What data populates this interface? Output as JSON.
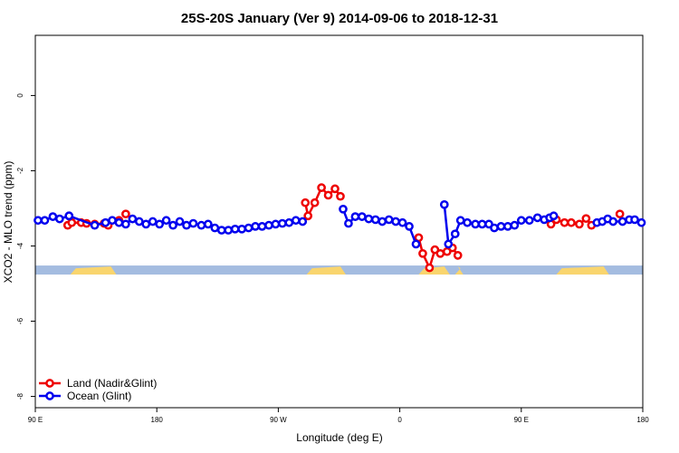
{
  "chart_data": {
    "type": "line",
    "title": "25S-20S January (Ver 9)   2014-09-06 to 2018-12-31",
    "xlabel": "Longitude (deg E)",
    "ylabel": "XCO2 - MLO trend (ppm)",
    "xlim": [
      90,
      540
    ],
    "ylim": [
      -8.3,
      1.6
    ],
    "x_ticks": [
      {
        "value": 90,
        "label": "90 E"
      },
      {
        "value": 180,
        "label": "180"
      },
      {
        "value": 270,
        "label": "90 W"
      },
      {
        "value": 360,
        "label": "0"
      },
      {
        "value": 450,
        "label": "90 E"
      },
      {
        "value": 540,
        "label": "180"
      }
    ],
    "y_ticks": [
      {
        "value": 0,
        "label": "0"
      },
      {
        "value": -2,
        "label": "-2"
      },
      {
        "value": -4,
        "label": "-4"
      },
      {
        "value": -6,
        "label": "-6"
      },
      {
        "value": -8,
        "label": "-8"
      }
    ],
    "grid": false,
    "legend_position": "bottom-left",
    "colors": {
      "land": "#ee0000",
      "ocean": "#0000ee",
      "land_band": "#f9d56e",
      "ocean_band": "#a4bce0"
    },
    "series": [
      {
        "name": "Land (Nadir&Glint)",
        "color": "#ee0000",
        "segments": [
          [
            [
              114,
              -3.45
            ],
            [
              117,
              -3.38
            ],
            [
              124,
              -3.38
            ],
            [
              128,
              -3.4
            ],
            [
              134,
              -3.42
            ],
            [
              141,
              -3.4
            ],
            [
              144,
              -3.45
            ]
          ],
          [
            [
              152,
              -3.32
            ]
          ],
          [
            [
              157,
              -3.15
            ]
          ],
          [
            [
              290,
              -2.85
            ],
            [
              292,
              -3.2
            ],
            [
              297,
              -2.85
            ],
            [
              302,
              -2.45
            ],
            [
              307,
              -2.65
            ],
            [
              312,
              -2.48
            ],
            [
              316,
              -2.68
            ]
          ],
          [
            [
              374,
              -3.78
            ],
            [
              377,
              -4.2
            ],
            [
              382,
              -4.58
            ],
            [
              386,
              -4.1
            ],
            [
              390,
              -4.2
            ],
            [
              395,
              -4.15
            ],
            [
              399,
              -4.05
            ],
            [
              403,
              -4.25
            ]
          ],
          [
            [
              472,
              -3.42
            ],
            [
              476,
              -3.3
            ],
            [
              482,
              -3.38
            ],
            [
              487,
              -3.38
            ],
            [
              493,
              -3.42
            ],
            [
              498,
              -3.27
            ],
            [
              502,
              -3.45
            ]
          ],
          [
            [
              523,
              -3.15
            ]
          ]
        ]
      },
      {
        "name": "Ocean (Glint)",
        "color": "#0000ee",
        "segments": [
          [
            [
              92,
              -3.32
            ],
            [
              97,
              -3.32
            ],
            [
              103,
              -3.22
            ],
            [
              108,
              -3.28
            ],
            [
              115,
              -3.2
            ]
          ],
          [
            [
              115,
              -3.2
            ],
            [
              134,
              -3.45
            ],
            [
              142,
              -3.38
            ],
            [
              147,
              -3.32
            ],
            [
              152,
              -3.38
            ],
            [
              157,
              -3.42
            ],
            [
              162,
              -3.28
            ],
            [
              167,
              -3.35
            ],
            [
              172,
              -3.42
            ],
            [
              177,
              -3.35
            ],
            [
              182,
              -3.42
            ],
            [
              187,
              -3.32
            ],
            [
              192,
              -3.45
            ],
            [
              197,
              -3.35
            ],
            [
              202,
              -3.45
            ],
            [
              207,
              -3.4
            ],
            [
              213,
              -3.45
            ],
            [
              218,
              -3.42
            ],
            [
              223,
              -3.52
            ],
            [
              228,
              -3.58
            ],
            [
              233,
              -3.58
            ],
            [
              238,
              -3.55
            ],
            [
              243,
              -3.55
            ],
            [
              248,
              -3.52
            ],
            [
              253,
              -3.48
            ],
            [
              258,
              -3.48
            ],
            [
              263,
              -3.45
            ],
            [
              268,
              -3.42
            ],
            [
              273,
              -3.4
            ],
            [
              278,
              -3.38
            ],
            [
              283,
              -3.32
            ],
            [
              288,
              -3.35
            ]
          ],
          [
            [
              318,
              -3.02
            ],
            [
              322,
              -3.4
            ],
            [
              327,
              -3.22
            ],
            [
              332,
              -3.22
            ],
            [
              337,
              -3.28
            ],
            [
              342,
              -3.3
            ],
            [
              347,
              -3.35
            ],
            [
              352,
              -3.3
            ],
            [
              357,
              -3.35
            ],
            [
              362,
              -3.38
            ],
            [
              367,
              -3.48
            ],
            [
              372,
              -3.95
            ]
          ],
          [
            [
              393,
              -2.9
            ],
            [
              396,
              -3.95
            ],
            [
              401,
              -3.68
            ],
            [
              405,
              -3.32
            ],
            [
              410,
              -3.38
            ],
            [
              416,
              -3.42
            ],
            [
              421,
              -3.42
            ],
            [
              426,
              -3.42
            ],
            [
              430,
              -3.52
            ],
            [
              435,
              -3.48
            ],
            [
              440,
              -3.48
            ],
            [
              445,
              -3.45
            ],
            [
              450,
              -3.32
            ],
            [
              456,
              -3.32
            ],
            [
              462,
              -3.25
            ],
            [
              467,
              -3.3
            ],
            [
              471,
              -3.25
            ],
            [
              474,
              -3.2
            ]
          ],
          [
            [
              506,
              -3.38
            ],
            [
              510,
              -3.35
            ],
            [
              514,
              -3.28
            ],
            [
              518,
              -3.35
            ],
            [
              525,
              -3.35
            ],
            [
              530,
              -3.3
            ],
            [
              534,
              -3.3
            ],
            [
              539,
              -3.38
            ]
          ]
        ]
      }
    ],
    "band": {
      "y_range": [
        -4.52,
        -4.76
      ],
      "land_intervals": [
        [
          116,
          150
        ],
        [
          291,
          320
        ],
        [
          374,
          397
        ],
        [
          401,
          407
        ],
        [
          476,
          515
        ]
      ]
    }
  }
}
